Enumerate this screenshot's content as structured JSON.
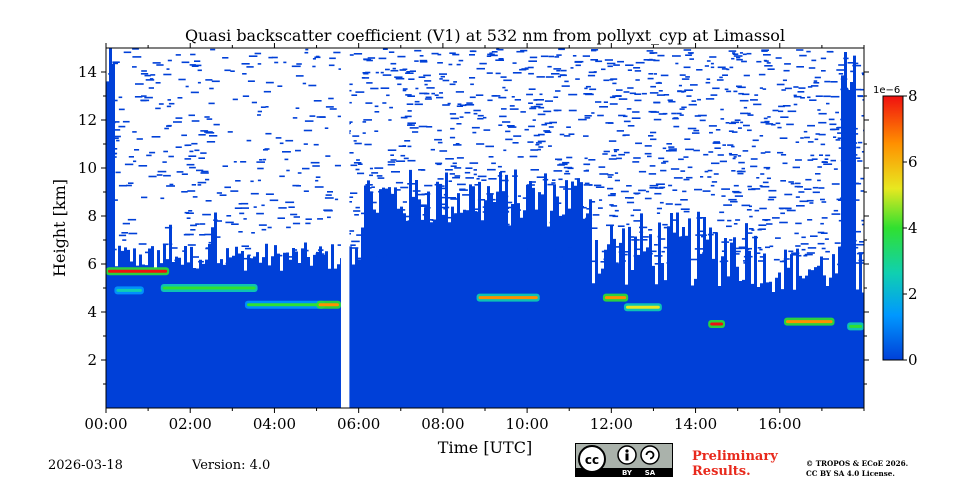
{
  "chart_data": {
    "type": "heatmap",
    "title": "Quasi backscatter coefficient (V1) at 532 nm from pollyxt_cyp at Limassol",
    "xlabel": "Time [UTC]",
    "ylabel": "Height [km]",
    "x_range_hours": [
      0,
      18
    ],
    "y_range_km": [
      0,
      15
    ],
    "x_ticks": [
      "00:00",
      "02:00",
      "04:00",
      "06:00",
      "08:00",
      "10:00",
      "12:00",
      "14:00",
      "16:00"
    ],
    "y_ticks": [
      "2",
      "4",
      "6",
      "8",
      "10",
      "12",
      "14"
    ],
    "colorbar": {
      "min": 0,
      "max": 8,
      "ticks": [
        "0",
        "2",
        "4",
        "6",
        "8"
      ],
      "exponent_label": "1e−6",
      "colors": [
        "#0040d8",
        "#0098ff",
        "#10d0b0",
        "#30e030",
        "#e8e820",
        "#ff9000",
        "#f01010"
      ]
    },
    "data_gap_hours": [
      5.58,
      5.78
    ],
    "aerosol_layers": [
      {
        "t0": 0.0,
        "t1": 1.5,
        "height_km": 5.7,
        "intensity": 7.8
      },
      {
        "t0": 0.2,
        "t1": 0.9,
        "height_km": 4.9,
        "intensity": 3.2
      },
      {
        "t0": 1.3,
        "t1": 3.6,
        "height_km": 5.0,
        "intensity": 3.8
      },
      {
        "t0": 3.3,
        "t1": 5.2,
        "height_km": 4.3,
        "intensity": 3.5
      },
      {
        "t0": 5.0,
        "t1": 5.58,
        "height_km": 4.3,
        "intensity": 6.5
      },
      {
        "t0": 8.8,
        "t1": 10.3,
        "height_km": 4.6,
        "intensity": 6.0
      },
      {
        "t0": 11.8,
        "t1": 12.4,
        "height_km": 4.6,
        "intensity": 6.5
      },
      {
        "t0": 12.3,
        "t1": 13.2,
        "height_km": 4.2,
        "intensity": 5.0
      },
      {
        "t0": 14.3,
        "t1": 14.7,
        "height_km": 3.5,
        "intensity": 7.5
      },
      {
        "t0": 16.1,
        "t1": 17.3,
        "height_km": 3.6,
        "intensity": 6.8
      },
      {
        "t0": 17.6,
        "t1": 18.0,
        "height_km": 3.4,
        "intensity": 4.5
      }
    ]
  },
  "footer": {
    "date": "2026-03-18",
    "version": "Version: 4.0",
    "license_badge": [
      "BY",
      "SA"
    ],
    "preliminary_line1": "Preliminary",
    "preliminary_line2": "Results.",
    "copyright_line1": "© TROPOS & ECoE 2026.",
    "copyright_line2": "CC BY SA 4.0 License."
  }
}
